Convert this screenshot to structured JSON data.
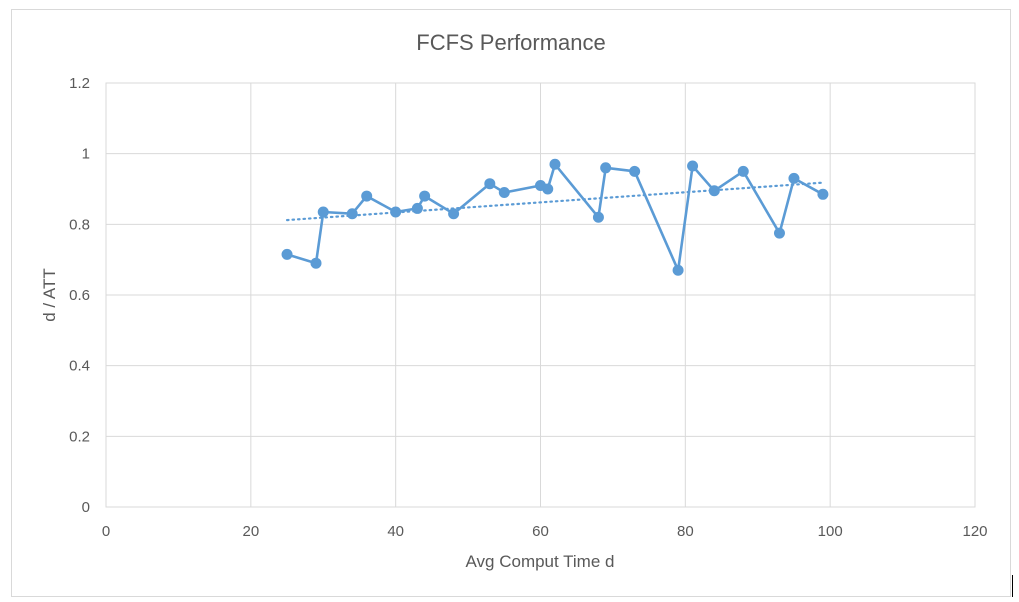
{
  "chart_data": {
    "type": "scatter",
    "title": "FCFS Performance",
    "xlabel": "Avg Comput Time d",
    "ylabel": "d / ATT",
    "xlim": [
      0,
      120
    ],
    "ylim": [
      0,
      1.2
    ],
    "xticks": [
      0,
      20,
      40,
      60,
      80,
      100,
      120
    ],
    "yticks": [
      0,
      0.2,
      0.4,
      0.6,
      0.8,
      1,
      1.2
    ],
    "xtick_labels": [
      "0",
      "20",
      "40",
      "60",
      "80",
      "100",
      "120"
    ],
    "ytick_labels": [
      "0",
      "0.2",
      "0.4",
      "0.6",
      "0.8",
      "1",
      "1.2"
    ],
    "grid": true,
    "legend": "none",
    "series": [
      {
        "style": "line-with-markers",
        "color": "#5b9bd5",
        "x": [
          25,
          29,
          30,
          34,
          36,
          40,
          43,
          44,
          48,
          53,
          55,
          60,
          61,
          62,
          68,
          69,
          73,
          79,
          81,
          84,
          88,
          93,
          95,
          99
        ],
        "y": [
          0.715,
          0.69,
          0.835,
          0.83,
          0.88,
          0.835,
          0.845,
          0.88,
          0.83,
          0.915,
          0.89,
          0.91,
          0.9,
          0.97,
          0.82,
          0.96,
          0.95,
          0.67,
          0.965,
          0.895,
          0.95,
          0.775,
          0.93,
          0.885
        ]
      }
    ],
    "trendline": {
      "type": "linear",
      "style": "dotted",
      "color": "#5b9bd5",
      "x": [
        25,
        99
      ],
      "y": [
        0.812,
        0.918
      ]
    }
  }
}
